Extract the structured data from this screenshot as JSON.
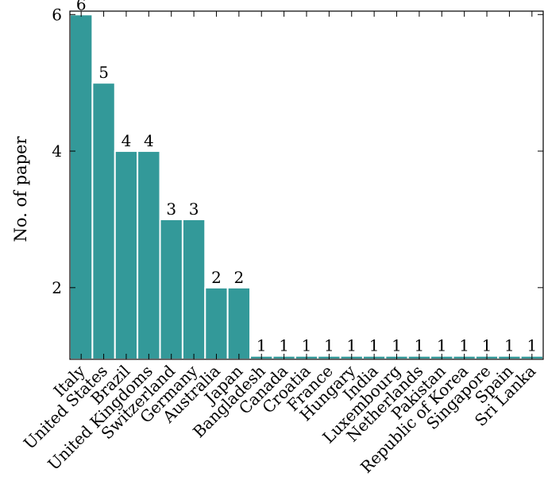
{
  "chart_data": {
    "type": "bar",
    "title": "",
    "xlabel": "",
    "ylabel": "No. of paper",
    "categories": [
      "Italy",
      "United States",
      "Brazil",
      "United Kingdoms",
      "Switzerland",
      "Germany",
      "Australia",
      "Japan",
      "Bangladesh",
      "Canada",
      "Croatia",
      "France",
      "Hungary",
      "India",
      "Luxembourg",
      "Netherlands",
      "Pakistan",
      "Republic of Korea",
      "Singapore",
      "Spain",
      "Sri Lanka"
    ],
    "values": [
      6,
      5,
      4,
      4,
      3,
      3,
      2,
      2,
      1,
      1,
      1,
      1,
      1,
      1,
      1,
      1,
      1,
      1,
      1,
      1,
      1
    ],
    "data_labels": [
      "6",
      "5",
      "4",
      "4",
      "3",
      "3",
      "2",
      "2",
      "1",
      "1",
      "1",
      "1",
      "1",
      "1",
      "1",
      "1",
      "1",
      "1",
      "1",
      "1",
      "1"
    ],
    "ylim": [
      0.95,
      6.05
    ],
    "yticks": [
      2,
      4,
      6
    ],
    "ytick_labels": [
      "2",
      "4",
      "6"
    ],
    "bar_color": "#339999",
    "grid": false,
    "legend": "none"
  }
}
